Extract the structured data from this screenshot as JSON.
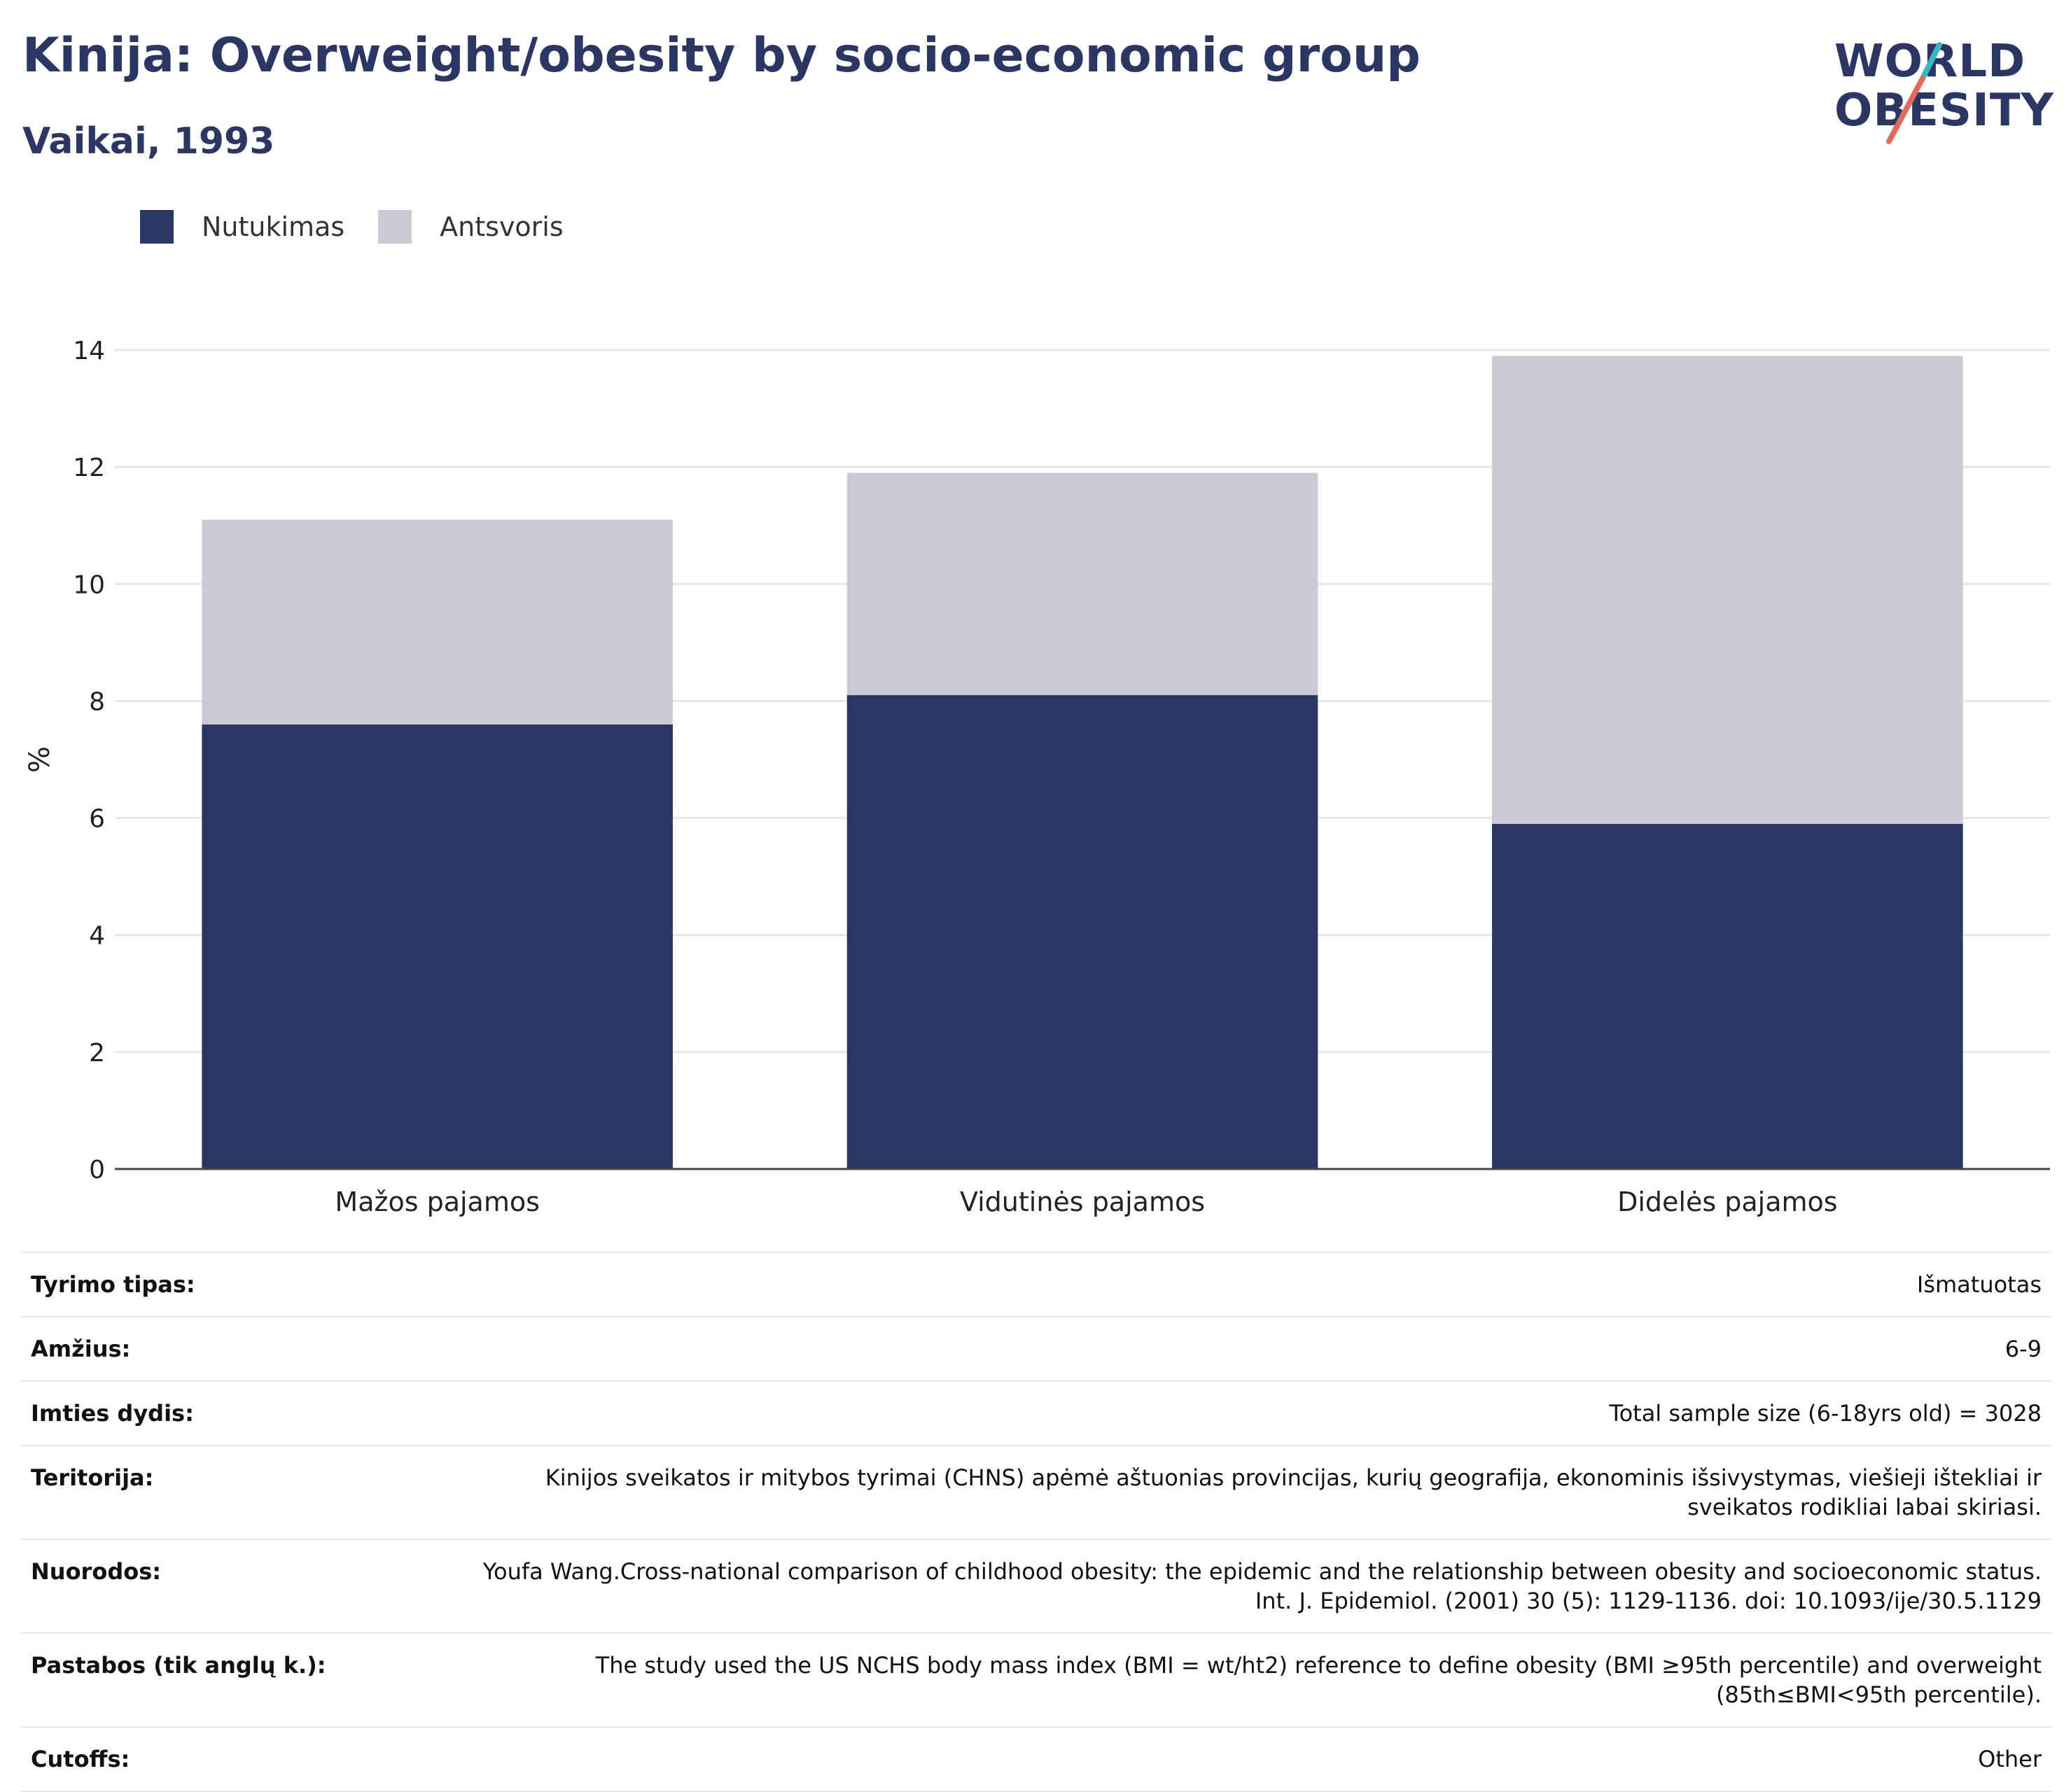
{
  "header": {
    "title": "Kinija: Overweight/obesity by socio-economic group",
    "subtitle": "Vaikai, 1993"
  },
  "logo": {
    "line1": "WORLD",
    "line2": "OBESITY",
    "colors": {
      "text": "#2b3663",
      "slash_top": "#3bb6c2",
      "slash_bottom": "#e06a5c"
    }
  },
  "legend": {
    "items": [
      {
        "label": "Nutukimas",
        "color": "#2b3663"
      },
      {
        "label": "Antsvoris",
        "color": "#c9cad6"
      }
    ]
  },
  "chart_data": {
    "type": "bar",
    "stacked": true,
    "categories": [
      "Mažos pajamos",
      "Vidutinės pajamos",
      "Didelės pajamos"
    ],
    "series": [
      {
        "name": "Nutukimas",
        "values": [
          7.6,
          8.1,
          5.9
        ],
        "color": "#2b3663"
      },
      {
        "name": "Antsvoris",
        "values": [
          3.5,
          3.8,
          8.0
        ],
        "color": "#c9cad6"
      }
    ],
    "title": "Kinija: Overweight/obesity by socio-economic group",
    "subtitle": "Vaikai, 1993",
    "xlabel": "",
    "ylabel": "%",
    "ylim": [
      0,
      14
    ],
    "yticks": [
      0,
      2,
      4,
      6,
      8,
      10,
      12,
      14
    ],
    "grid": true,
    "legend_position": "top-left"
  },
  "info": {
    "rows": [
      {
        "label": "Tyrimo tipas:",
        "value": "Išmatuotas"
      },
      {
        "label": "Amžius:",
        "value": "6-9"
      },
      {
        "label": "Imties dydis:",
        "value": "Total sample size (6-18yrs old) = 3028"
      },
      {
        "label": "Teritorija:",
        "value": "Kinijos sveikatos ir mitybos tyrimai (CHNS) apėmė aštuonias provincijas, kurių geografija, ekonominis išsivystymas, viešieji ištekliai ir sveikatos rodikliai labai skiriasi."
      },
      {
        "label": "Nuorodos:",
        "value": "Youfa Wang.Cross-national comparison of childhood obesity: the epidemic and the relationship between obesity and socioeconomic status. Int. J. Epidemiol. (2001) 30 (5): 1129-1136. doi: 10.1093/ije/30.5.1129"
      },
      {
        "label": "Pastabos (tik anglų k.):",
        "value": "The study used the US NCHS body mass index (BMI = wt/ht2) reference to define obesity (BMI ≥95th percentile) and overweight (85th≤BMI<95th percentile)."
      },
      {
        "label": "Cutoffs:",
        "value": "Other"
      }
    ]
  }
}
